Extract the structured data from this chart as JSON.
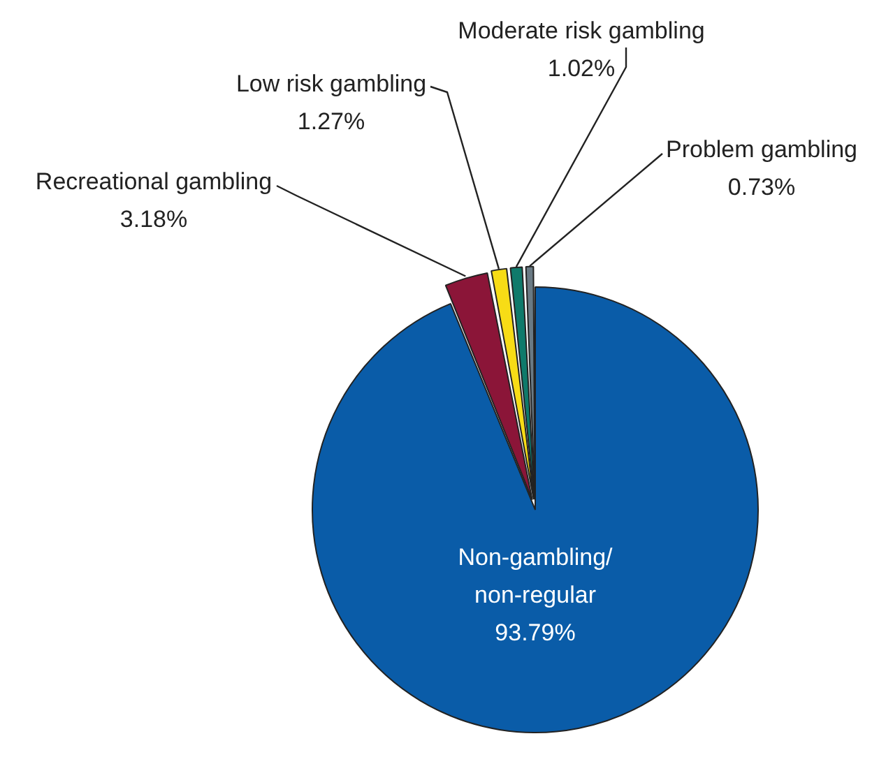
{
  "chart_data": {
    "type": "pie",
    "categories": [
      "Non-gambling/non-regular",
      "Recreational gambling",
      "Low risk gambling",
      "Moderate risk gambling",
      "Problem gambling"
    ],
    "values": [
      93.79,
      3.18,
      1.27,
      1.02,
      0.73
    ],
    "value_labels": [
      "93.79%",
      "3.18%",
      "1.27%",
      "1.02%",
      "0.73%"
    ],
    "colors": [
      "#0a5ca8",
      "#8b1538",
      "#f7dc16",
      "#0f7a6b",
      "#6a7a84"
    ],
    "legend": false
  }
}
